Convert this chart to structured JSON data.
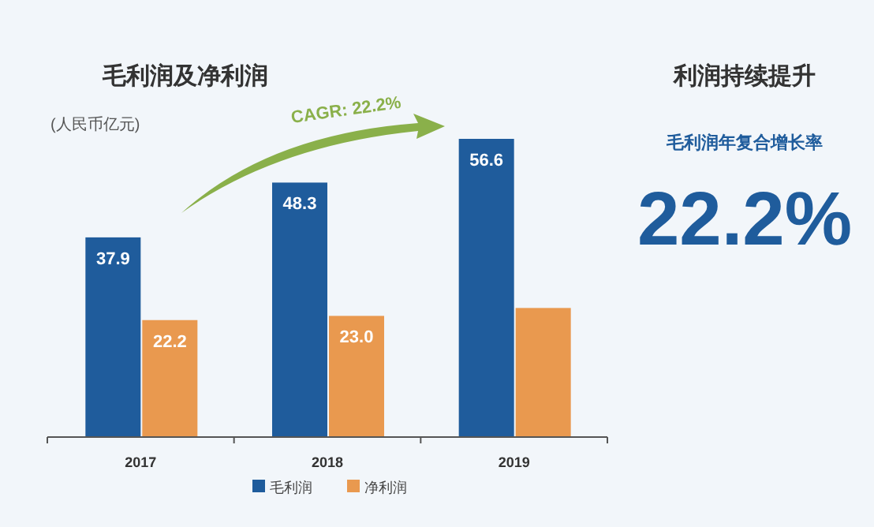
{
  "chart_data": [
    {
      "type": "bar",
      "title": "毛利润及净利润",
      "subtitle": "(人民币亿元)",
      "categories": [
        "2017",
        "2018",
        "2019"
      ],
      "series": [
        {
          "name": "毛利润",
          "color": "#1f5c9c",
          "values": [
            37.9,
            48.3,
            56.6
          ],
          "value_labels": [
            "37.9",
            "48.3",
            "56.6"
          ]
        },
        {
          "name": "净利润",
          "color": "#e9994f",
          "values": [
            22.2,
            23.0,
            24.5
          ],
          "value_labels": [
            "22.2",
            "23.0",
            null
          ]
        }
      ],
      "annotations": [
        "CAGR: 22.2%"
      ],
      "legend": "bottom"
    },
    {
      "type": "other",
      "title": "利润持续提升",
      "subtitle": "毛利润年复合增长率",
      "annotations": [
        "22.2%"
      ]
    }
  ]
}
